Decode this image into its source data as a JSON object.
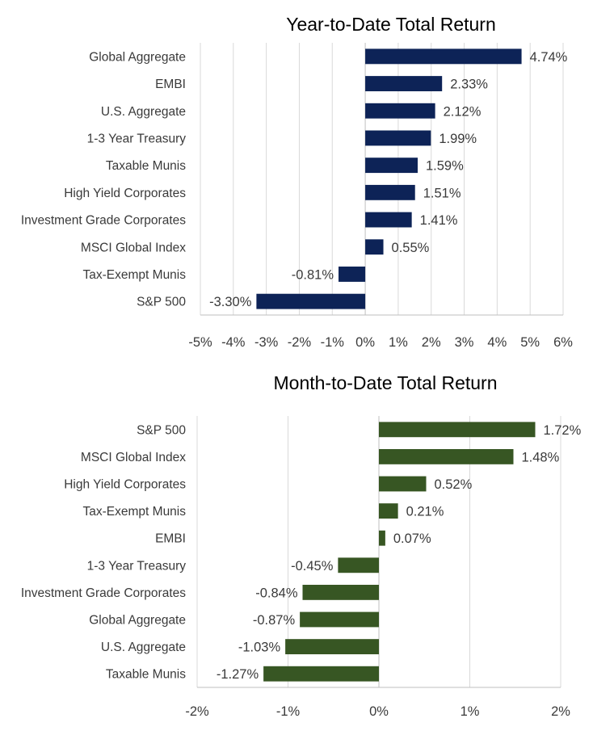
{
  "chart_data": [
    {
      "type": "bar",
      "orientation": "horizontal",
      "title": "Year-to-Date Total Return",
      "categories": [
        "Global Aggregate",
        "EMBI",
        "U.S. Aggregate",
        "1-3 Year Treasury",
        "Taxable Munis",
        "High Yield Corporates",
        "Investment Grade Corporates",
        "MSCI Global Index",
        "Tax-Exempt Munis",
        "S&P 500"
      ],
      "values": [
        4.74,
        2.33,
        2.12,
        1.99,
        1.59,
        1.51,
        1.41,
        0.55,
        -0.81,
        -3.3
      ],
      "value_labels": [
        "4.74%",
        "2.33%",
        "2.12%",
        "1.99%",
        "1.59%",
        "1.51%",
        "1.41%",
        "0.55%",
        "-0.81%",
        "-3.30%"
      ],
      "xlim": [
        -5,
        6
      ],
      "xticks": [
        -5,
        -4,
        -3,
        -2,
        -1,
        0,
        1,
        2,
        3,
        4,
        5,
        6
      ],
      "xtick_labels": [
        "-5%",
        "-4%",
        "-3%",
        "-2%",
        "-1%",
        "0%",
        "1%",
        "2%",
        "3%",
        "4%",
        "5%",
        "6%"
      ],
      "bar_color": "#0d2357",
      "grid": true,
      "xlabel": "",
      "ylabel": ""
    },
    {
      "type": "bar",
      "orientation": "horizontal",
      "title": "Month-to-Date Total Return",
      "categories": [
        "S&P 500",
        "MSCI Global Index",
        "High Yield Corporates",
        "Tax-Exempt Munis",
        "EMBI",
        "1-3 Year Treasury",
        "Investment Grade Corporates",
        "Global Aggregate",
        "U.S. Aggregate",
        "Taxable Munis"
      ],
      "values": [
        1.72,
        1.48,
        0.52,
        0.21,
        0.07,
        -0.45,
        -0.84,
        -0.87,
        -1.03,
        -1.27
      ],
      "value_labels": [
        "1.72%",
        "1.48%",
        "0.52%",
        "0.21%",
        "0.07%",
        "-0.45%",
        "-0.84%",
        "-0.87%",
        "-1.03%",
        "-1.27%"
      ],
      "xlim": [
        -2,
        2
      ],
      "xticks": [
        -2,
        -1,
        0,
        1,
        2
      ],
      "xtick_labels": [
        "-2%",
        "-1%",
        "0%",
        "1%",
        "2%"
      ],
      "bar_color": "#375623",
      "grid": true,
      "xlabel": "",
      "ylabel": ""
    }
  ]
}
